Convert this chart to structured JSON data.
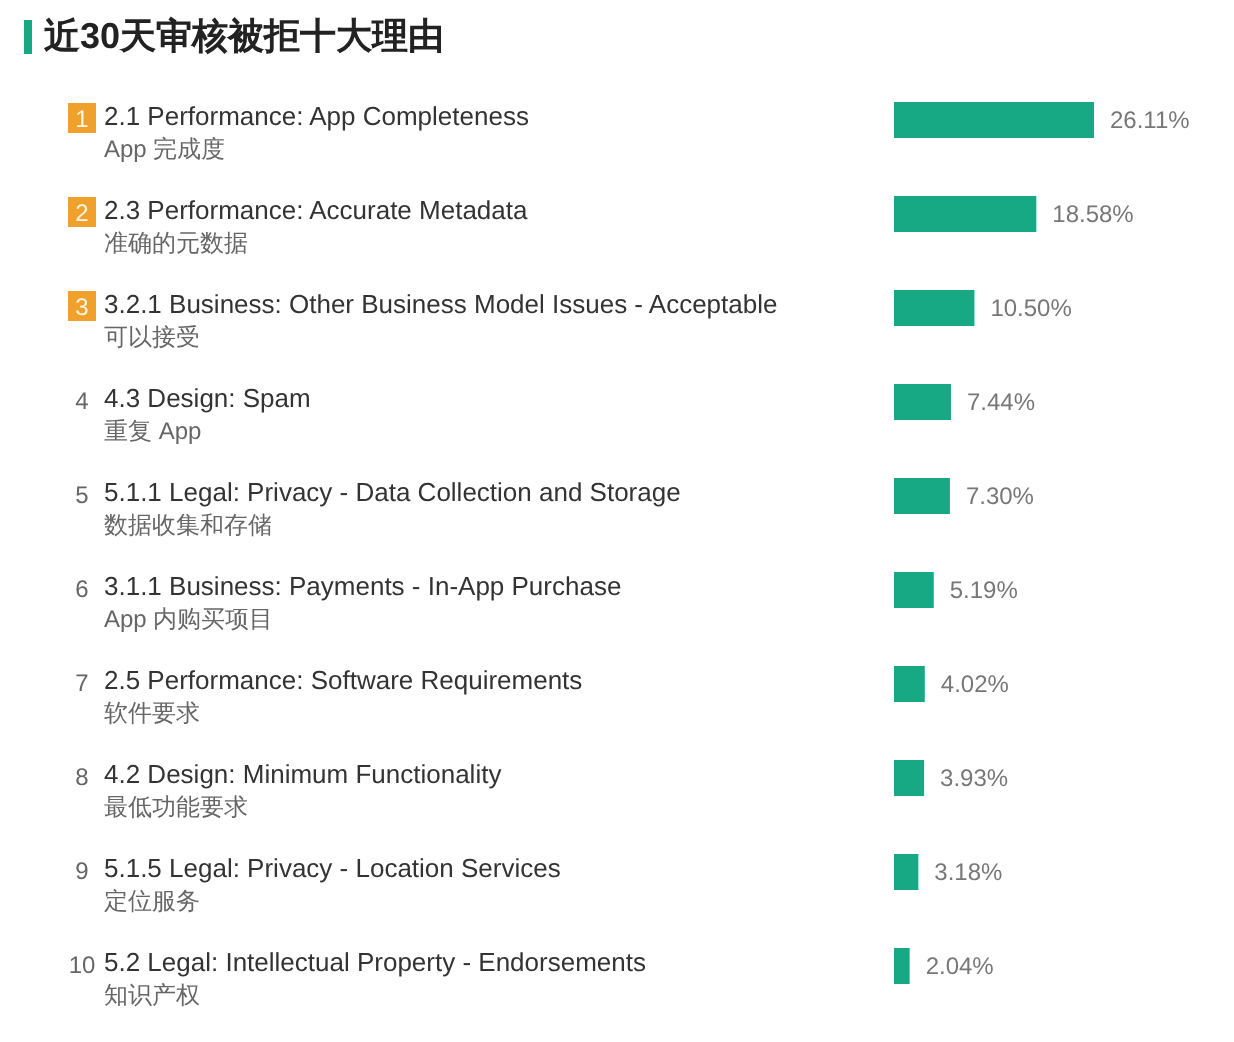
{
  "chart_data": {
    "type": "bar",
    "orientation": "horizontal",
    "title": "近30天审核被拒十大理由",
    "categories": [
      "2.1 Performance: App Completeness\nApp 完成度",
      "2.3 Performance: Accurate Metadata\n准确的元数据",
      "3.2.1 Business: Other Business Model Issues - Acceptable\n可以接受",
      "4.3 Design: Spam\n重复 App",
      "5.1.1 Legal: Privacy - Data Collection and Storage\n数据收集和存储",
      "3.1.1 Business: Payments - In-App Purchase\nApp 内购买项目",
      "2.5 Performance: Software Requirements\n软件要求",
      "4.2 Design: Minimum Functionality\n最低功能要求",
      "5.1.5 Legal: Privacy - Location Services\n定位服务",
      "5.2 Legal: Intellectual Property - Endorsements\n知识产权"
    ],
    "values": [
      26.11,
      18.58,
      10.5,
      7.44,
      7.3,
      5.19,
      4.02,
      3.93,
      3.18,
      2.04
    ],
    "value_labels": [
      "26.11%",
      "18.58%",
      "10.50%",
      "7.44%",
      "7.30%",
      "5.19%",
      "4.02%",
      "3.93%",
      "3.18%",
      "2.04%"
    ],
    "color": "#17a984",
    "annotations": [
      "1",
      "2",
      "3",
      "4",
      "5",
      "6",
      "7",
      "8",
      "9",
      "10"
    ],
    "tick_labels": "y"
  }
}
